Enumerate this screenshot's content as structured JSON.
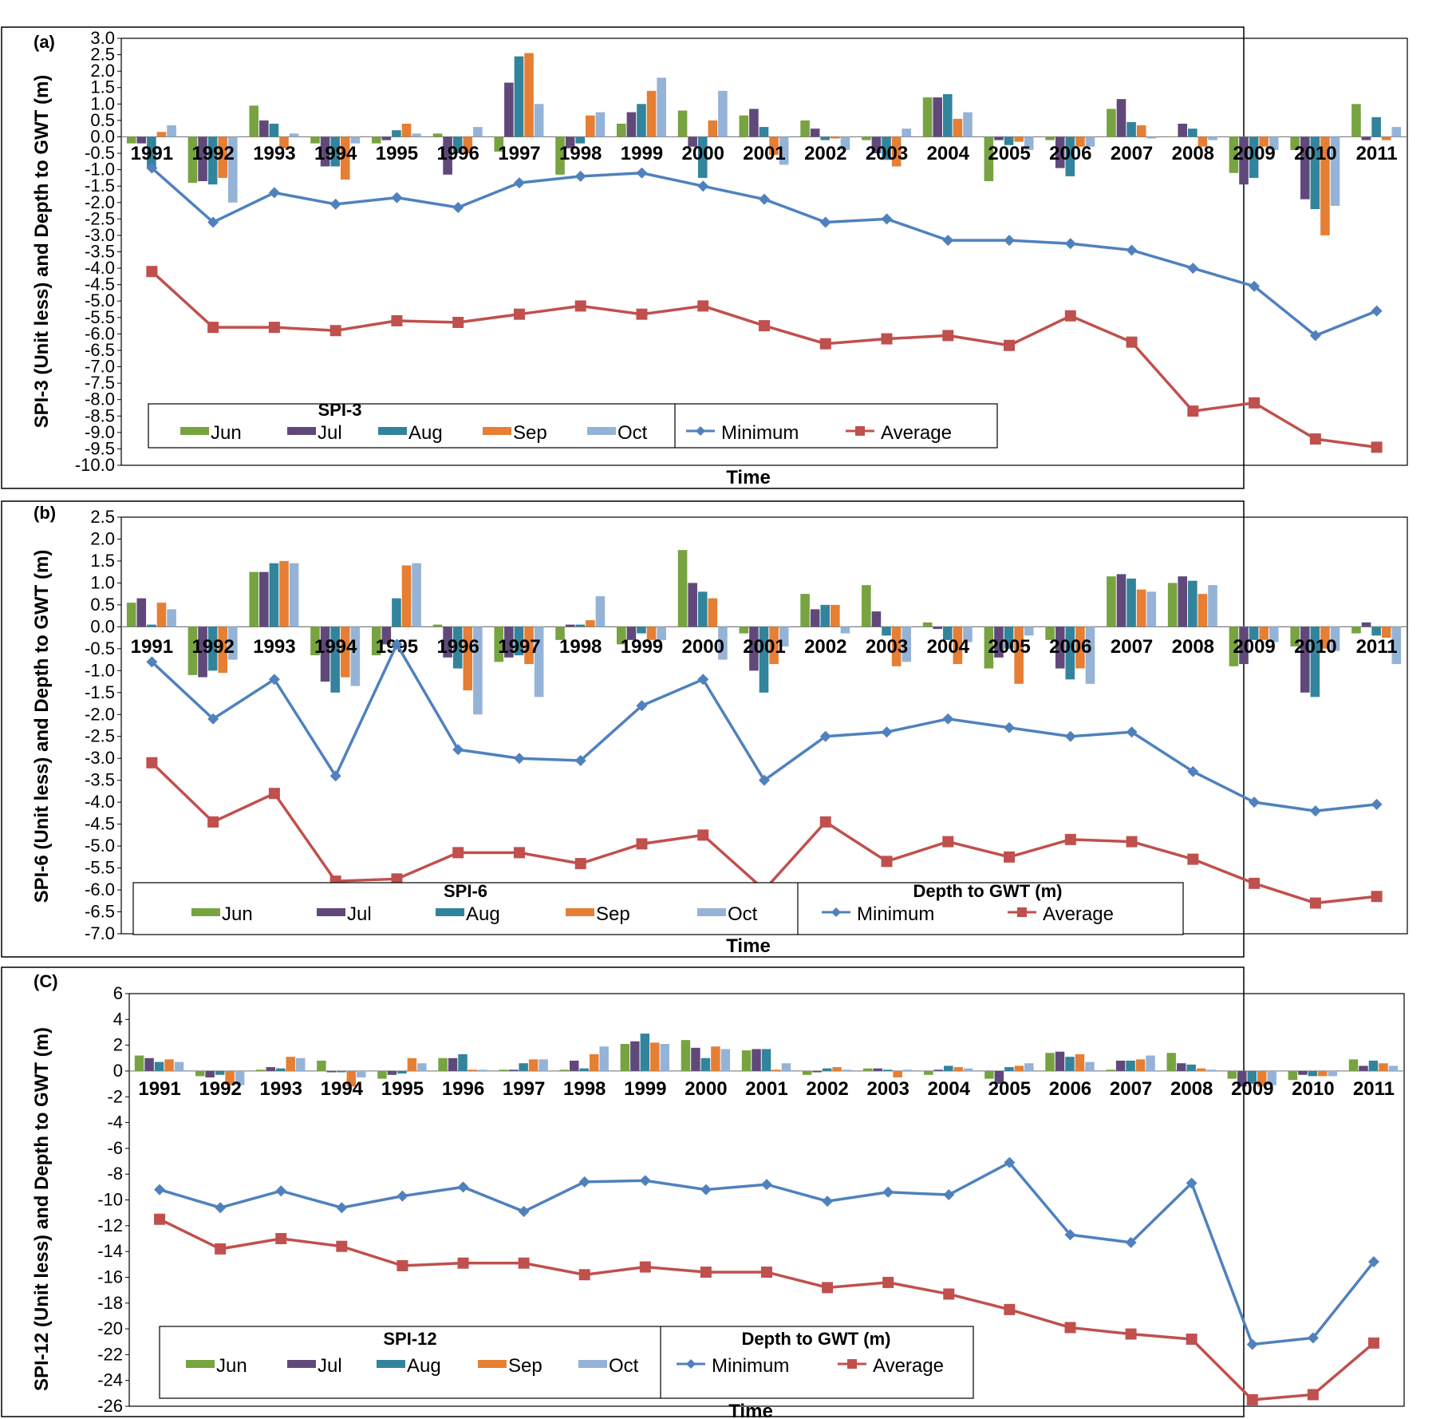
{
  "chart_data": [
    {
      "type": "bar",
      "panel_label": "(a)",
      "title": "",
      "xlabel": "Time",
      "ylabel": "SPI-3 (Unit less) and Depth to GWT (m)",
      "ylim": [
        -10,
        3
      ],
      "yticks": [
        "3.0",
        "2.5",
        "2.0",
        "1.5",
        "1.0",
        "0.5",
        "0.0",
        "-0.5",
        "-1.0",
        "-1.5",
        "-2.0",
        "-2.5",
        "-3.0",
        "-3.5",
        "-4.0",
        "-4.5",
        "-5.0",
        "-5.5",
        "-6.0",
        "-6.5",
        "-7.0",
        "-7.5",
        "-8.0",
        "-8.5",
        "-9.0",
        "-9.5",
        "-10.0"
      ],
      "categories": [
        "1991",
        "1992",
        "1993",
        "1994",
        "1995",
        "1996",
        "1997",
        "1998",
        "1999",
        "2000",
        "2001",
        "2002",
        "2003",
        "2004",
        "2005",
        "2006",
        "2007",
        "2008",
        "2009",
        "2010",
        "2011"
      ],
      "legend_left_title": "SPI-3",
      "legend_right_title": "",
      "series": [
        {
          "name": "Jun",
          "kind": "bar",
          "color": "#77a340",
          "values": [
            -0.2,
            -1.4,
            0.95,
            -0.2,
            -0.2,
            0.1,
            -0.45,
            -1.15,
            0.4,
            0.8,
            0.65,
            0.5,
            -0.1,
            1.2,
            -1.35,
            -0.1,
            0.85,
            0.0,
            -1.1,
            -0.4,
            1.0
          ]
        },
        {
          "name": "Jul",
          "kind": "bar",
          "color": "#60497a",
          "values": [
            -0.2,
            -1.35,
            0.5,
            -0.9,
            -0.1,
            -1.15,
            1.65,
            -0.35,
            0.75,
            -0.3,
            0.85,
            0.25,
            -0.5,
            1.2,
            -0.1,
            -0.95,
            1.15,
            0.4,
            -1.45,
            -1.9,
            -0.1
          ]
        },
        {
          "name": "Aug",
          "kind": "bar",
          "color": "#31849b",
          "values": [
            -0.95,
            -1.45,
            0.4,
            -0.9,
            0.2,
            -0.5,
            2.45,
            -0.2,
            1.0,
            -1.25,
            0.3,
            -0.1,
            -0.7,
            1.3,
            -0.25,
            -1.2,
            0.45,
            0.25,
            -1.25,
            -2.2,
            0.6
          ]
        },
        {
          "name": "Sep",
          "kind": "bar",
          "color": "#e67e33",
          "values": [
            0.15,
            -1.25,
            -0.35,
            -1.3,
            0.4,
            -0.5,
            2.55,
            0.65,
            1.4,
            0.5,
            -0.55,
            -0.05,
            -0.9,
            0.55,
            -0.15,
            -0.3,
            0.35,
            -0.3,
            -0.3,
            -3.0,
            -0.1
          ]
        },
        {
          "name": "Oct",
          "kind": "bar",
          "color": "#95b3d7",
          "values": [
            0.35,
            -2.0,
            0.1,
            -0.2,
            0.1,
            0.3,
            1.0,
            0.75,
            1.8,
            1.4,
            -0.85,
            -0.4,
            0.25,
            0.75,
            -0.4,
            -0.3,
            -0.05,
            -0.1,
            -0.4,
            -2.1,
            0.3
          ]
        },
        {
          "name": "Minimum",
          "kind": "line",
          "color": "#4f81bd",
          "marker": "diamond",
          "values": [
            -0.95,
            -2.6,
            -1.7,
            -2.05,
            -1.85,
            -2.15,
            -1.4,
            -1.2,
            -1.1,
            -1.5,
            -1.9,
            -2.6,
            -2.5,
            -3.15,
            -3.15,
            -3.25,
            -3.45,
            -4.0,
            -4.55,
            -6.05,
            -5.3
          ]
        },
        {
          "name": "Average",
          "kind": "line",
          "color": "#c0504d",
          "marker": "square",
          "values": [
            -4.1,
            -5.8,
            -5.8,
            -5.9,
            -5.6,
            -5.65,
            -5.4,
            -5.15,
            -5.4,
            -5.15,
            -5.75,
            -6.3,
            -6.15,
            -6.05,
            -6.35,
            -5.45,
            -6.25,
            -8.35,
            -8.1,
            -9.2,
            -9.45
          ]
        }
      ]
    },
    {
      "type": "bar",
      "panel_label": "(b)",
      "title": "",
      "xlabel": "Time",
      "ylabel": "SPI-6 (Unit less) and Depth to GWT (m)",
      "ylim": [
        -7,
        2.5
      ],
      "yticks": [
        "2.5",
        "2.0",
        "1.5",
        "1.0",
        "0.5",
        "0.0",
        "-0.5",
        "-1.0",
        "-1.5",
        "-2.0",
        "-2.5",
        "-3.0",
        "-3.5",
        "-4.0",
        "-4.5",
        "-5.0",
        "-5.5",
        "-6.0",
        "-6.5",
        "-7.0"
      ],
      "categories": [
        "1991",
        "1992",
        "1993",
        "1994",
        "1995",
        "1996",
        "1997",
        "1998",
        "1999",
        "2000",
        "2001",
        "2002",
        "2003",
        "2004",
        "2005",
        "2006",
        "2007",
        "2008",
        "2009",
        "2010",
        "2011"
      ],
      "legend_left_title": "SPI-6",
      "legend_right_title": "Depth to GWT (m)",
      "series": [
        {
          "name": "Jun",
          "kind": "bar",
          "color": "#77a340",
          "values": [
            0.55,
            -1.1,
            1.25,
            -0.65,
            -0.65,
            0.05,
            -0.8,
            -0.3,
            -0.4,
            1.75,
            -0.15,
            0.75,
            0.95,
            0.1,
            -0.95,
            -0.3,
            1.15,
            1.0,
            -0.9,
            -0.45,
            -0.15
          ]
        },
        {
          "name": "Jul",
          "kind": "bar",
          "color": "#60497a",
          "values": [
            0.65,
            -1.15,
            1.25,
            -1.25,
            -0.4,
            -0.7,
            -0.7,
            0.05,
            -0.3,
            1.0,
            -1.0,
            0.4,
            0.35,
            -0.05,
            -0.7,
            -0.95,
            1.2,
            1.15,
            -0.85,
            -1.5,
            0.1
          ]
        },
        {
          "name": "Aug",
          "kind": "bar",
          "color": "#31849b",
          "values": [
            0.05,
            -1.0,
            1.45,
            -1.5,
            0.65,
            -0.95,
            -0.65,
            0.05,
            -0.15,
            0.8,
            -1.5,
            0.5,
            -0.2,
            -0.3,
            -0.5,
            -1.2,
            1.1,
            1.05,
            -0.3,
            -1.6,
            -0.2
          ]
        },
        {
          "name": "Sep",
          "kind": "bar",
          "color": "#e67e33",
          "values": [
            0.55,
            -1.05,
            1.5,
            -1.15,
            1.4,
            -1.45,
            -0.85,
            0.15,
            -0.3,
            0.65,
            -0.85,
            0.5,
            -0.9,
            -0.85,
            -1.3,
            -0.95,
            0.85,
            0.75,
            -0.3,
            -0.5,
            -0.25
          ]
        },
        {
          "name": "Oct",
          "kind": "bar",
          "color": "#95b3d7",
          "values": [
            0.4,
            -0.75,
            1.45,
            -1.35,
            1.45,
            -2.0,
            -1.6,
            0.7,
            -0.3,
            -0.75,
            -0.45,
            -0.15,
            -0.8,
            -0.35,
            -0.2,
            -1.3,
            0.8,
            0.95,
            -0.35,
            -0.55,
            -0.85
          ]
        },
        {
          "name": "Minimum",
          "kind": "line",
          "color": "#4f81bd",
          "marker": "diamond",
          "values": [
            -0.8,
            -2.1,
            -1.2,
            -3.4,
            -0.4,
            -2.8,
            -3.0,
            -3.05,
            -1.8,
            -1.2,
            -3.5,
            -2.5,
            -2.4,
            -2.1,
            -2.3,
            -2.5,
            -2.4,
            -3.3,
            -4.0,
            -4.2,
            -4.05
          ]
        },
        {
          "name": "Average",
          "kind": "line",
          "color": "#c0504d",
          "marker": "square",
          "values": [
            -3.1,
            -4.45,
            -3.8,
            -5.8,
            -5.75,
            -5.15,
            -5.15,
            -5.4,
            -4.95,
            -4.75,
            -6.0,
            -4.45,
            -5.35,
            -4.9,
            -5.25,
            -4.85,
            -4.9,
            -5.3,
            -5.85,
            -6.3,
            -6.15
          ]
        }
      ]
    },
    {
      "type": "bar",
      "panel_label": "(C)",
      "title": "",
      "xlabel": "Time",
      "ylabel": "SPI-12 (Unit less) and Depth to GWT (m)",
      "ylim": [
        -26,
        6
      ],
      "yticks": [
        "6",
        "4",
        "2",
        "0",
        "-2",
        "-4",
        "-6",
        "-8",
        "-10",
        "-12",
        "-14",
        "-16",
        "-18",
        "-20",
        "-22",
        "-24",
        "-26"
      ],
      "categories": [
        "1991",
        "1992",
        "1993",
        "1994",
        "1995",
        "1996",
        "1997",
        "1998",
        "1999",
        "2000",
        "2001",
        "2002",
        "2003",
        "2004",
        "2005",
        "2006",
        "2007",
        "2008",
        "2009",
        "2010",
        "2011"
      ],
      "legend_left_title": "SPI-12",
      "legend_right_title": "Depth to GWT (m)",
      "series": [
        {
          "name": "Jun",
          "kind": "bar",
          "color": "#77a340",
          "values": [
            1.2,
            -0.4,
            0.1,
            0.8,
            -0.6,
            1.0,
            0.1,
            0.1,
            2.1,
            2.4,
            1.6,
            -0.3,
            0.2,
            -0.3,
            -0.6,
            1.4,
            0.1,
            1.4,
            -0.6,
            -0.7,
            0.9
          ]
        },
        {
          "name": "Jul",
          "kind": "bar",
          "color": "#60497a",
          "values": [
            1.0,
            -0.5,
            0.3,
            -0.1,
            -0.3,
            1.0,
            0.1,
            0.8,
            2.3,
            1.8,
            1.7,
            -0.1,
            0.2,
            0.1,
            -1.0,
            1.5,
            0.8,
            0.6,
            -1.2,
            -0.3,
            0.4
          ]
        },
        {
          "name": "Aug",
          "kind": "bar",
          "color": "#31849b",
          "values": [
            0.7,
            -0.3,
            0.2,
            -0.1,
            -0.2,
            1.3,
            0.6,
            0.2,
            2.9,
            1.0,
            1.7,
            0.2,
            0.1,
            0.4,
            0.3,
            1.1,
            0.8,
            0.5,
            -1.0,
            -0.4,
            0.8
          ]
        },
        {
          "name": "Sep",
          "kind": "bar",
          "color": "#e67e33",
          "values": [
            0.9,
            -1.1,
            1.1,
            -1.2,
            1.0,
            0.1,
            0.9,
            1.3,
            2.2,
            1.9,
            0.1,
            0.3,
            -0.5,
            0.3,
            0.4,
            1.3,
            0.9,
            0.2,
            -1.2,
            -0.4,
            0.6
          ]
        },
        {
          "name": "Oct",
          "kind": "bar",
          "color": "#95b3d7",
          "values": [
            0.7,
            -1.1,
            1.0,
            -0.5,
            0.6,
            0.1,
            0.9,
            1.9,
            2.1,
            1.7,
            0.6,
            0.1,
            0.1,
            0.2,
            0.6,
            0.7,
            1.2,
            0.1,
            -1.1,
            -0.4,
            0.4
          ]
        },
        {
          "name": "Minimum",
          "kind": "line",
          "color": "#4f81bd",
          "marker": "diamond",
          "values": [
            -9.2,
            -10.6,
            -9.3,
            -10.6,
            -9.7,
            -9.0,
            -10.9,
            -8.6,
            -8.5,
            -9.2,
            -8.8,
            -10.1,
            -9.4,
            -9.6,
            -7.1,
            -12.7,
            -13.3,
            -8.7,
            -21.2,
            -20.7,
            -14.8
          ]
        },
        {
          "name": "Average",
          "kind": "line",
          "color": "#c0504d",
          "marker": "square",
          "values": [
            -11.5,
            -13.8,
            -13.0,
            -13.6,
            -15.1,
            -14.9,
            -14.9,
            -15.8,
            -15.2,
            -15.6,
            -15.6,
            -16.8,
            -16.4,
            -17.3,
            -18.5,
            -19.9,
            -20.4,
            -20.8,
            -25.5,
            -25.1,
            -21.1
          ]
        }
      ]
    }
  ]
}
